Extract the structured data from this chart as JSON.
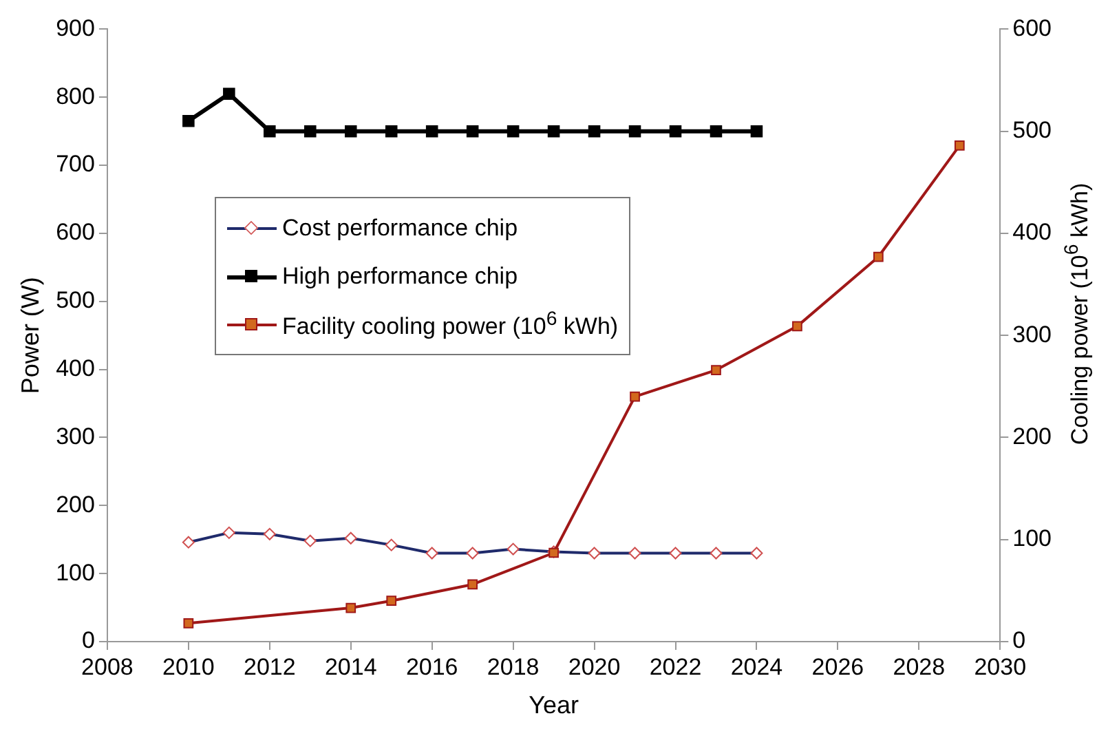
{
  "chart_data": {
    "type": "line",
    "xlabel": "Year",
    "ylabel": "Power (W)",
    "y2label": "Cooling power (10$^{6}$ kWh)",
    "xlim": [
      2008,
      2030
    ],
    "xticks": [
      2008,
      2010,
      2012,
      2014,
      2016,
      2018,
      2020,
      2022,
      2024,
      2026,
      2028,
      2030
    ],
    "ylim": [
      0,
      900
    ],
    "yticks": [
      0,
      100,
      200,
      300,
      400,
      500,
      600,
      700,
      800,
      900
    ],
    "y2lim": [
      0,
      600
    ],
    "y2ticks": [
      0,
      100,
      200,
      300,
      400,
      500,
      600
    ],
    "grid": false,
    "legend": "left",
    "series": [
      {
        "name": "Cost performance chip",
        "color": "#1f2a6b",
        "marker": "diamond",
        "x": [
          2010,
          2011,
          2012,
          2013,
          2014,
          2015,
          2016,
          2017,
          2018,
          2019,
          2020,
          2021,
          2022,
          2023,
          2024
        ],
        "values": [
          146,
          160,
          158,
          148,
          152,
          142,
          130,
          130,
          136,
          132,
          130,
          130,
          130,
          130,
          130
        ]
      },
      {
        "name": "High performance chip",
        "color": "#000000",
        "marker": "square",
        "x": [
          2010,
          2011,
          2012,
          2013,
          2014,
          2015,
          2016,
          2017,
          2018,
          2019,
          2020,
          2021,
          2022,
          2023,
          2024
        ],
        "values": [
          765,
          805,
          750,
          750,
          750,
          750,
          750,
          750,
          750,
          750,
          750,
          750,
          750,
          750,
          750
        ]
      },
      {
        "name": "Facility cooling power (10$^{6}$ kWh)",
        "color": "#a01818",
        "marker": "square",
        "axis": "y2",
        "x": [
          2010,
          2014,
          2015,
          2017,
          2019,
          2021,
          2023,
          2025,
          2027,
          2029
        ],
        "values": [
          18,
          33,
          40,
          56,
          87,
          240,
          266,
          309,
          377,
          486
        ]
      }
    ]
  }
}
